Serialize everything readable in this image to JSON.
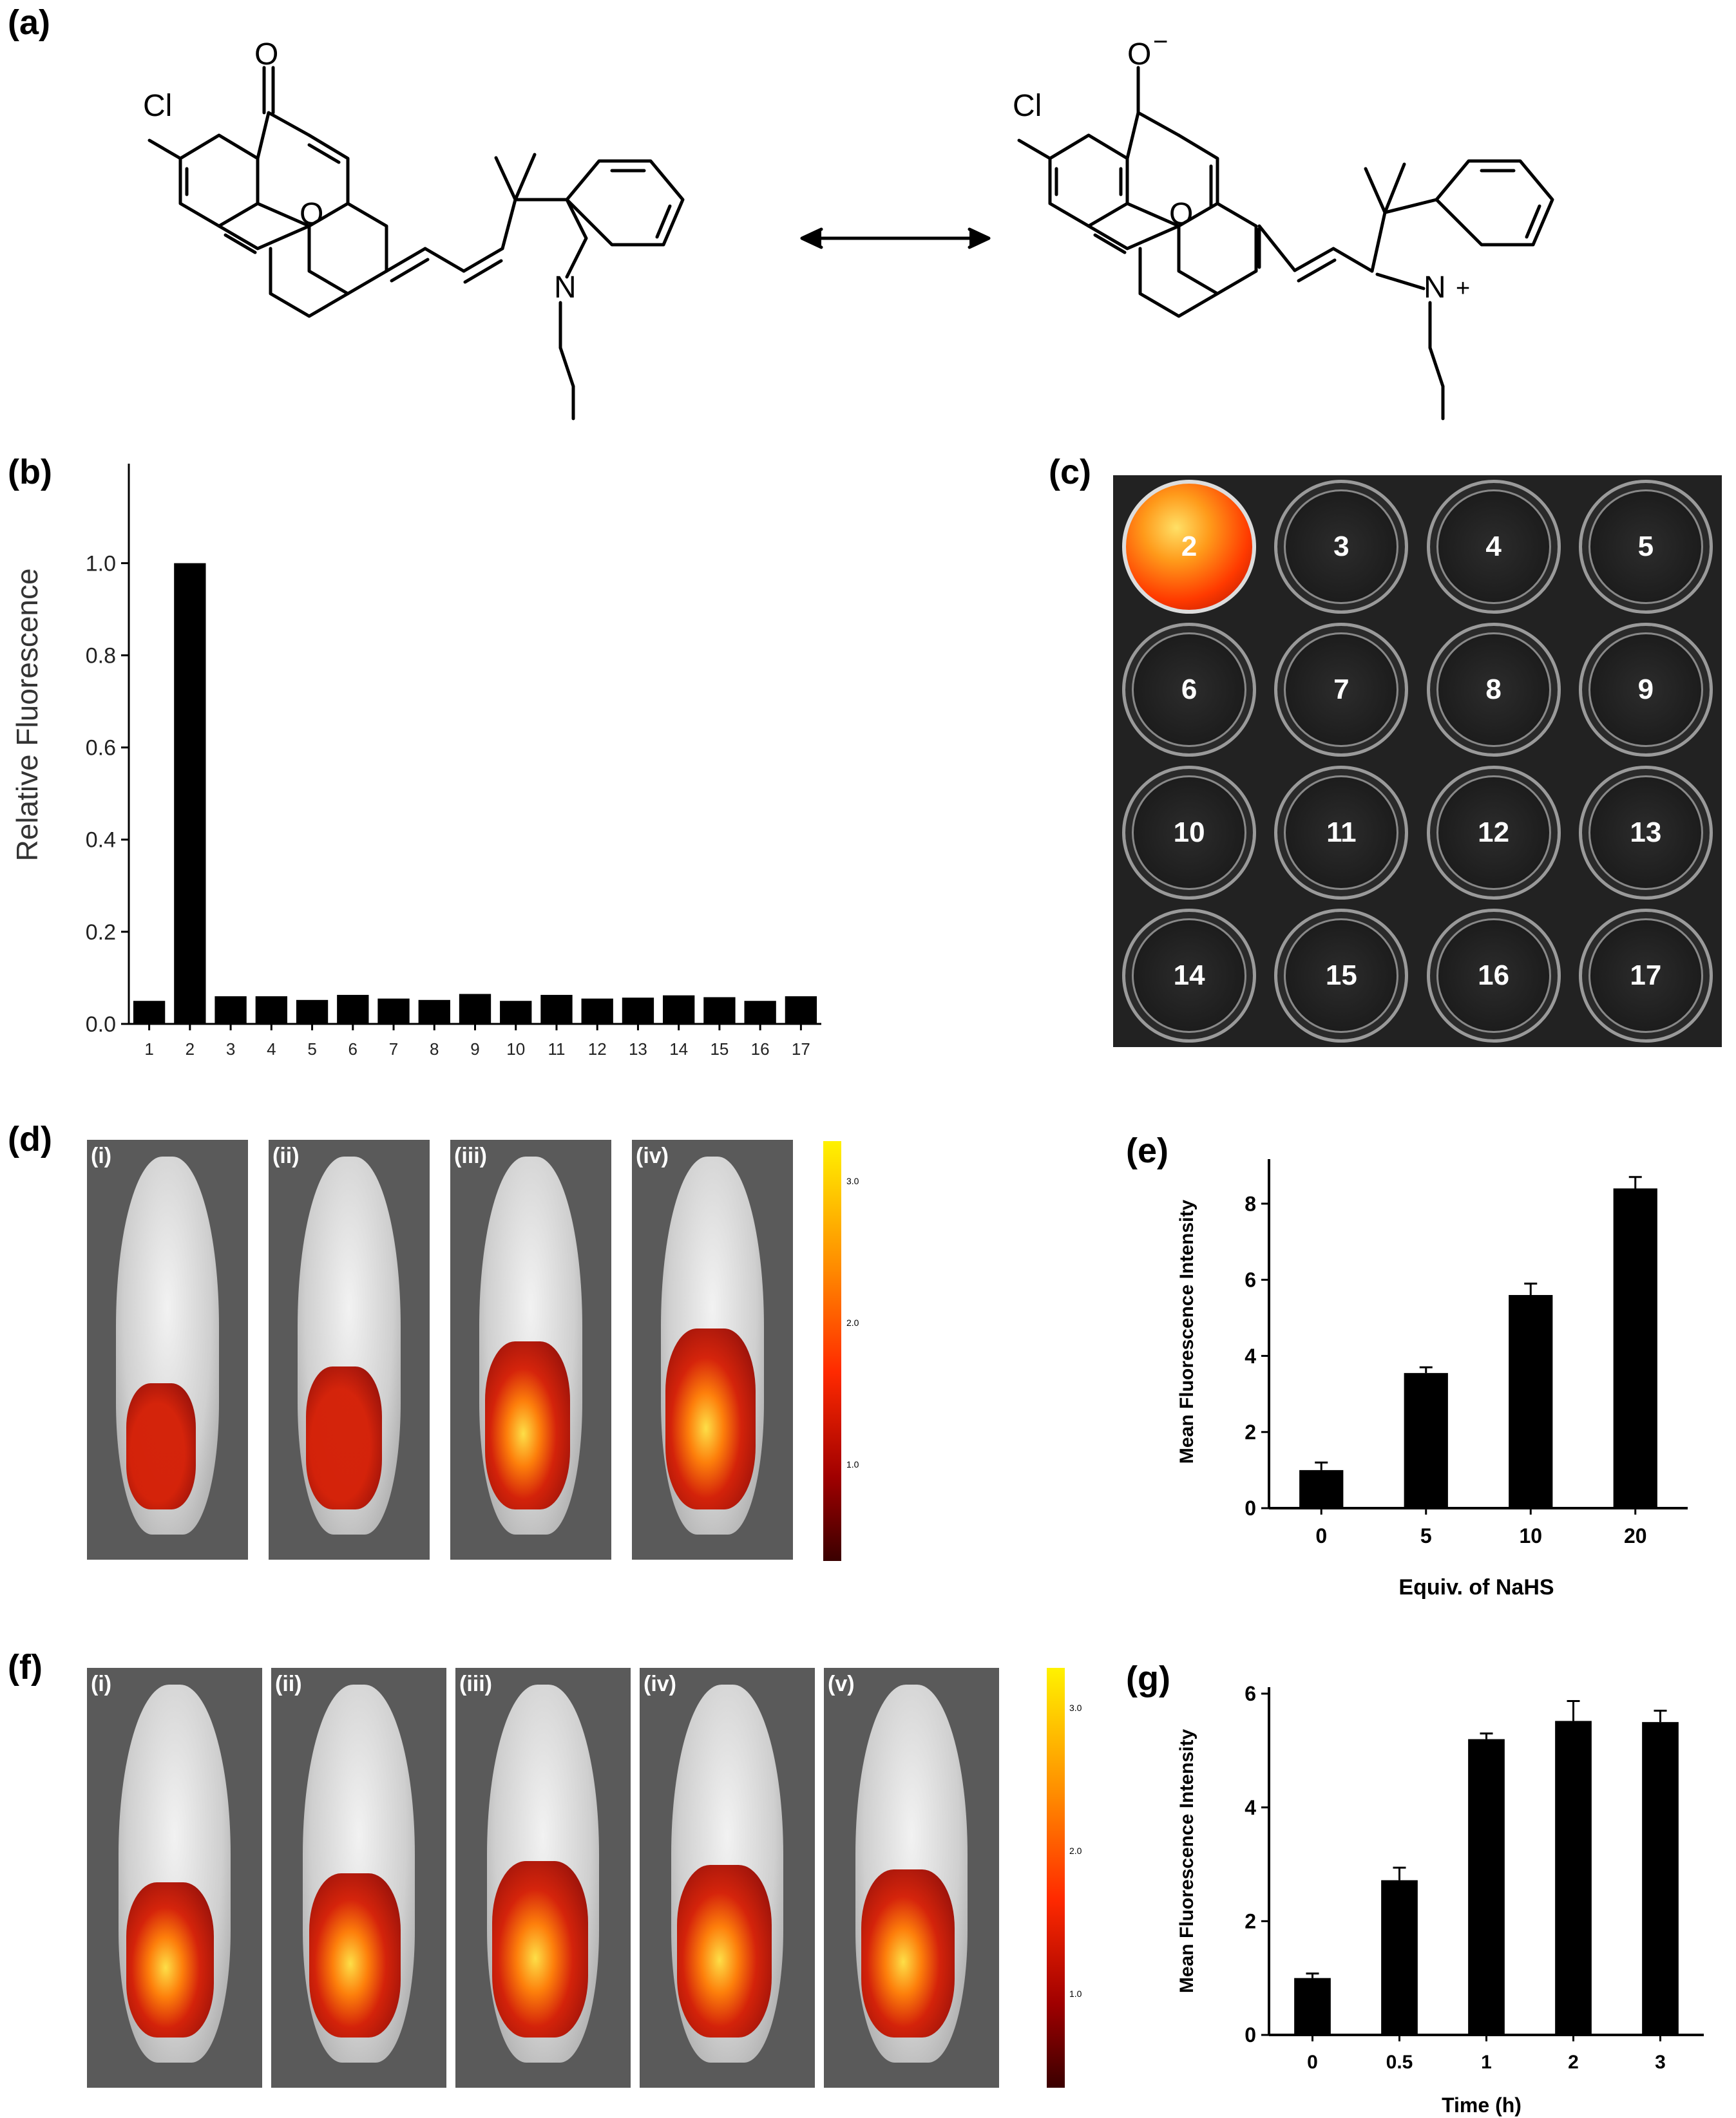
{
  "panels": {
    "a": "(a)",
    "b": "(b)",
    "c": "(c)",
    "d": "(d)",
    "e": "(e)",
    "f": "(f)",
    "g": "(g)"
  },
  "structure_a": {
    "left": {
      "carbonyl_o": "O",
      "cl": "Cl",
      "ring_o": "O",
      "n": "N"
    },
    "right": {
      "phenolate_o": "O",
      "charge_minus": "−",
      "cl": "Cl",
      "ring_o": "O",
      "n": "N",
      "charge_plus": "+"
    }
  },
  "chart_b": {
    "ylabel": "Relative Fluorescence",
    "yticks": [
      "0.0",
      "0.2",
      "0.4",
      "0.6",
      "0.8",
      "1.0"
    ]
  },
  "plate_c": {
    "wells": [
      "2",
      "3",
      "4",
      "5",
      "6",
      "7",
      "8",
      "9",
      "10",
      "11",
      "12",
      "13",
      "14",
      "15",
      "16",
      "17"
    ]
  },
  "panel_d": {
    "tiles": [
      "(i)",
      "(ii)",
      "(iii)",
      "(iv)"
    ],
    "scale_ticks": [
      "3.0",
      "2.0",
      "1.0"
    ],
    "signal_levels": [
      0.25,
      0.45,
      0.75,
      0.9
    ]
  },
  "chart_e": {
    "ylabel": "Mean Fluorescence Intensity",
    "xlabel": "Equiv. of NaHS",
    "yticks": [
      "0",
      "2",
      "4",
      "6",
      "8"
    ]
  },
  "panel_f": {
    "tiles": [
      "(i)",
      "(ii)",
      "(iii)",
      "(iv)",
      "(v)"
    ],
    "scale_ticks": [
      "3.0",
      "2.0",
      "1.0"
    ],
    "signal_levels": [
      0.6,
      0.7,
      0.85,
      0.8,
      0.75
    ]
  },
  "chart_g": {
    "ylabel": "Mean Fluorescence Intensity",
    "xlabel": "Time (h)",
    "yticks": [
      "0",
      "2",
      "4",
      "6"
    ]
  },
  "chart_data": [
    {
      "type": "bar",
      "categories": [
        "1",
        "2",
        "3",
        "4",
        "5",
        "6",
        "7",
        "8",
        "9",
        "10",
        "11",
        "12",
        "13",
        "14",
        "15",
        "16",
        "17"
      ],
      "values": [
        0.05,
        1.0,
        0.06,
        0.06,
        0.052,
        0.063,
        0.055,
        0.052,
        0.065,
        0.05,
        0.063,
        0.055,
        0.057,
        0.062,
        0.058,
        0.05,
        0.06
      ],
      "title": "",
      "xlabel": "",
      "ylabel": "Relative Fluorescence",
      "ylim": [
        0,
        1.1
      ],
      "grid": false
    },
    {
      "type": "bar",
      "categories": [
        "0",
        "5",
        "10",
        "20"
      ],
      "values": [
        1.0,
        3.55,
        5.6,
        8.4
      ],
      "errors": [
        0.2,
        0.15,
        0.3,
        0.3
      ],
      "title": "",
      "xlabel": "Equiv. of NaHS",
      "ylabel": "Mean Fluorescence Intensity",
      "ylim": [
        0,
        9
      ],
      "grid": false
    },
    {
      "type": "bar",
      "categories": [
        "0",
        "0.5",
        "1",
        "2",
        "3"
      ],
      "values": [
        1.0,
        2.72,
        5.2,
        5.52,
        5.5
      ],
      "errors": [
        0.08,
        0.22,
        0.1,
        0.35,
        0.2
      ],
      "title": "",
      "xlabel": "Time (h)",
      "ylabel": "Mean Fluorescence Intensity",
      "ylim": [
        0,
        6
      ],
      "grid": false
    }
  ]
}
